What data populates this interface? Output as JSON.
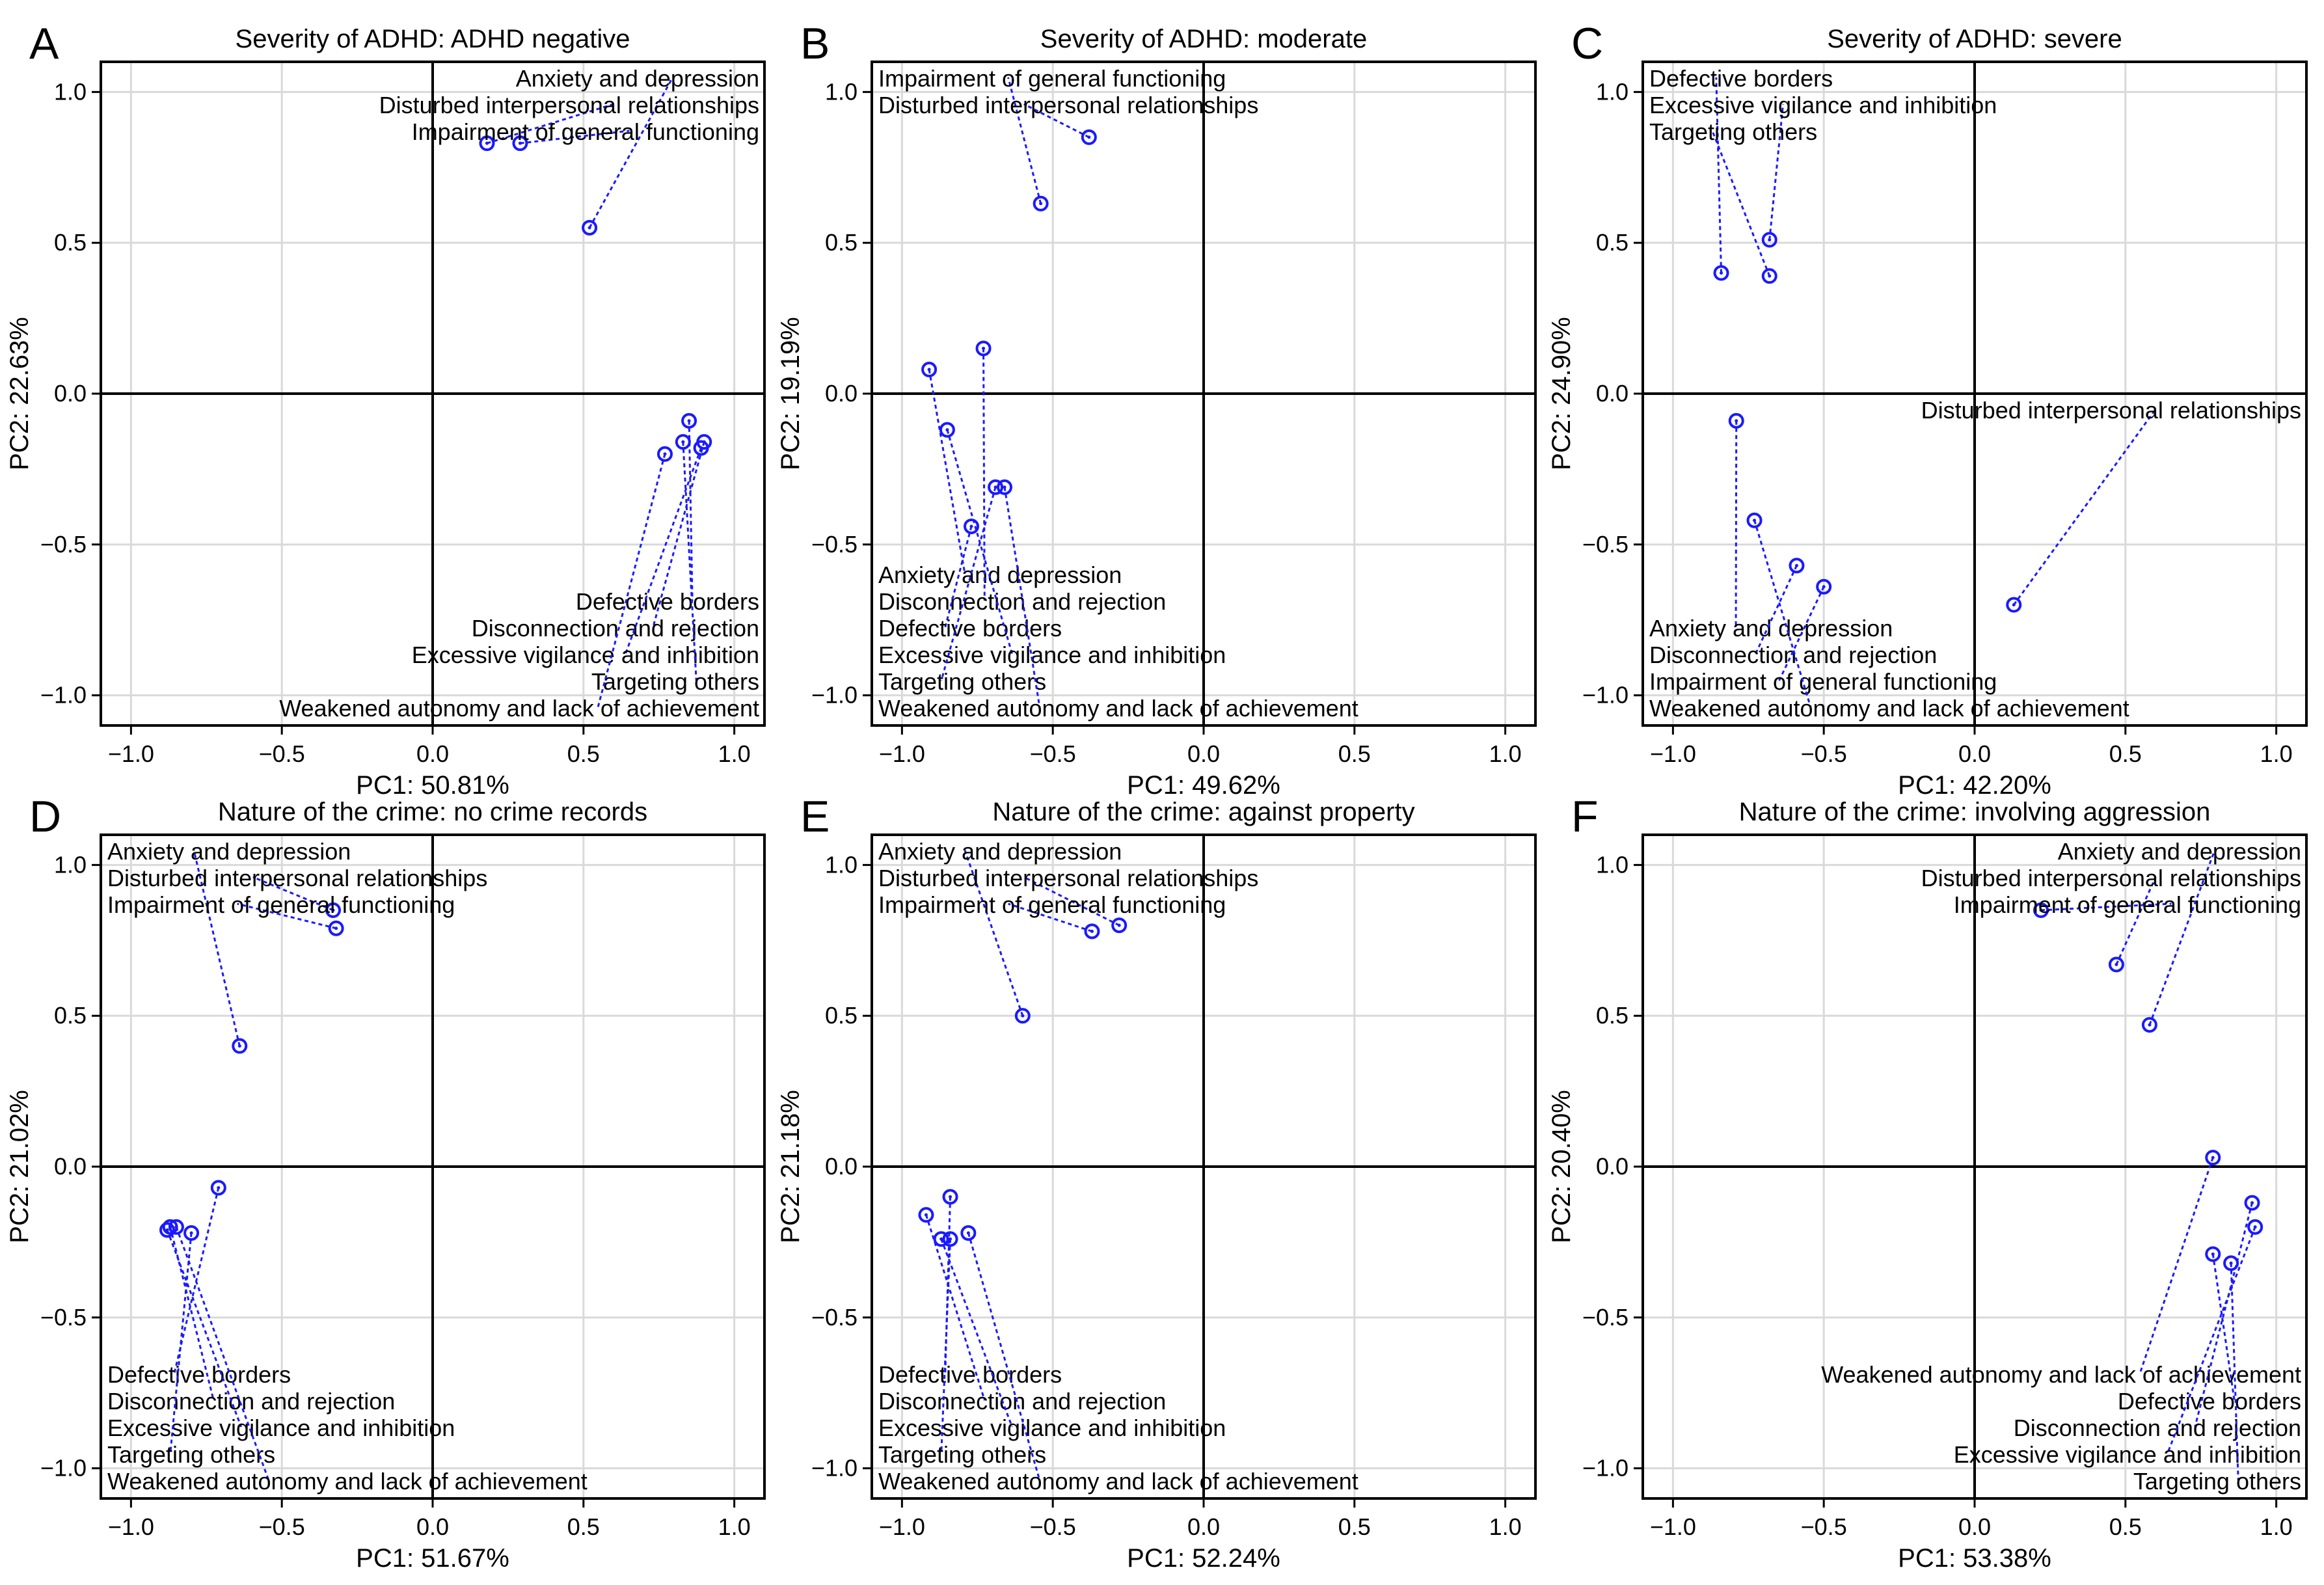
{
  "figure": {
    "colors": {
      "points": "#1a1aff",
      "axes": "#000000",
      "grid": "#d9d9d9",
      "background": "#ffffff"
    },
    "label_placement": "text labels connected to points by dotted leader lines"
  },
  "chart_data": [
    {
      "panel": "A",
      "type": "scatter",
      "title": "Severity of ADHD: ADHD negative",
      "xlabel": "PC1: 50.81%",
      "ylabel": "PC2: 22.63%",
      "xlim": [
        -1.1,
        1.1
      ],
      "ylim": [
        -1.1,
        1.1
      ],
      "xticks": [
        -1.0,
        -0.5,
        0.0,
        0.5,
        1.0
      ],
      "yticks": [
        -1.0,
        -0.5,
        0.0,
        0.5,
        1.0
      ],
      "grid": true,
      "label_block_top": "top-right",
      "label_block_bottom": "bottom-right",
      "points": [
        {
          "label": "Anxiety and depression",
          "x": 0.52,
          "y": 0.55
        },
        {
          "label": "Disturbed interpersonal relationships",
          "x": 0.18,
          "y": 0.83
        },
        {
          "label": "Impairment of general functioning",
          "x": 0.29,
          "y": 0.83
        },
        {
          "label": "Defective borders",
          "x": 0.85,
          "y": -0.09
        },
        {
          "label": "Disconnection and rejection",
          "x": 0.9,
          "y": -0.16
        },
        {
          "label": "Excessive vigilance and inhibition",
          "x": 0.89,
          "y": -0.18
        },
        {
          "label": "Targeting others",
          "x": 0.83,
          "y": -0.16
        },
        {
          "label": "Weakened autonomy and lack of achievement",
          "x": 0.77,
          "y": -0.2
        }
      ]
    },
    {
      "panel": "B",
      "type": "scatter",
      "title": "Severity of ADHD: moderate",
      "xlabel": "PC1: 49.62%",
      "ylabel": "PC2: 19.19%",
      "xlim": [
        -1.1,
        1.1
      ],
      "ylim": [
        -1.1,
        1.1
      ],
      "xticks": [
        -1.0,
        -0.5,
        0.0,
        0.5,
        1.0
      ],
      "yticks": [
        -1.0,
        -0.5,
        0.0,
        0.5,
        1.0
      ],
      "grid": true,
      "label_block_top": "top-left",
      "label_block_bottom": "bottom-left",
      "points": [
        {
          "label": "Anxiety and depression",
          "x": -0.91,
          "y": 0.08
        },
        {
          "label": "Disconnection and rejection",
          "x": -0.73,
          "y": 0.15
        },
        {
          "label": "Impairment of general functioning",
          "x": -0.54,
          "y": 0.63
        },
        {
          "label": "Disturbed interpersonal relationships",
          "x": -0.38,
          "y": 0.85
        },
        {
          "label": "Defective borders",
          "x": -0.77,
          "y": -0.44
        },
        {
          "label": "Excessive vigilance and inhibition",
          "x": -0.85,
          "y": -0.12
        },
        {
          "label": "Targeting others",
          "x": -0.69,
          "y": -0.31
        },
        {
          "label": "Weakened autonomy and lack of achievement",
          "x": -0.66,
          "y": -0.31
        }
      ]
    },
    {
      "panel": "C",
      "type": "scatter",
      "title": "Severity of ADHD: severe",
      "xlabel": "PC1: 42.20%",
      "ylabel": "PC2: 24.90%",
      "xlim": [
        -1.1,
        1.1
      ],
      "ylim": [
        -1.1,
        1.1
      ],
      "xticks": [
        -1.0,
        -0.5,
        0.0,
        0.5,
        1.0
      ],
      "yticks": [
        -1.0,
        -0.5,
        0.0,
        0.5,
        1.0
      ],
      "grid": true,
      "label_block_top": "top-left",
      "label_block_bottom": "bottom-left",
      "extra_label": "right-middle",
      "points": [
        {
          "label": "Defective borders",
          "x": -0.84,
          "y": 0.4
        },
        {
          "label": "Excessive vigilance and inhibition",
          "x": -0.68,
          "y": 0.51
        },
        {
          "label": "Targeting others",
          "x": -0.68,
          "y": 0.39
        },
        {
          "label": "Disturbed interpersonal relationships",
          "x": 0.13,
          "y": -0.7
        },
        {
          "label": "Anxiety and depression",
          "x": -0.79,
          "y": -0.09
        },
        {
          "label": "Disconnection and rejection",
          "x": -0.59,
          "y": -0.57
        },
        {
          "label": "Impairment of general functioning",
          "x": -0.5,
          "y": -0.64
        },
        {
          "label": "Weakened autonomy and lack of achievement",
          "x": -0.73,
          "y": -0.42
        }
      ]
    },
    {
      "panel": "D",
      "type": "scatter",
      "title": "Nature of the crime: no crime records",
      "xlabel": "PC1: 51.67%",
      "ylabel": "PC2: 21.02%",
      "xlim": [
        -1.1,
        1.1
      ],
      "ylim": [
        -1.1,
        1.1
      ],
      "xticks": [
        -1.0,
        -0.5,
        0.0,
        0.5,
        1.0
      ],
      "yticks": [
        -1.0,
        -0.5,
        0.0,
        0.5,
        1.0
      ],
      "grid": true,
      "label_block_top": "top-left",
      "label_block_bottom": "bottom-left",
      "points": [
        {
          "label": "Anxiety and depression",
          "x": -0.64,
          "y": 0.4
        },
        {
          "label": "Disturbed interpersonal relationships",
          "x": -0.33,
          "y": 0.85
        },
        {
          "label": "Impairment of general functioning",
          "x": -0.32,
          "y": 0.79
        },
        {
          "label": "Defective borders",
          "x": -0.71,
          "y": -0.07
        },
        {
          "label": "Disconnection and rejection",
          "x": -0.87,
          "y": -0.2
        },
        {
          "label": "Excessive vigilance and inhibition",
          "x": -0.88,
          "y": -0.21
        },
        {
          "label": "Targeting others",
          "x": -0.8,
          "y": -0.22
        },
        {
          "label": "Weakened autonomy and lack of achievement",
          "x": -0.85,
          "y": -0.2
        }
      ]
    },
    {
      "panel": "E",
      "type": "scatter",
      "title": "Nature of the crime: against property",
      "xlabel": "PC1: 52.24%",
      "ylabel": "PC2: 21.18%",
      "xlim": [
        -1.1,
        1.1
      ],
      "ylim": [
        -1.1,
        1.1
      ],
      "xticks": [
        -1.0,
        -0.5,
        0.0,
        0.5,
        1.0
      ],
      "yticks": [
        -1.0,
        -0.5,
        0.0,
        0.5,
        1.0
      ],
      "grid": true,
      "label_block_top": "top-left",
      "label_block_bottom": "bottom-left",
      "points": [
        {
          "label": "Anxiety and depression",
          "x": -0.6,
          "y": 0.5
        },
        {
          "label": "Disturbed interpersonal relationships",
          "x": -0.28,
          "y": 0.8
        },
        {
          "label": "Impairment of general functioning",
          "x": -0.37,
          "y": 0.78
        },
        {
          "label": "Defective borders",
          "x": -0.84,
          "y": -0.1
        },
        {
          "label": "Disconnection and rejection",
          "x": -0.92,
          "y": -0.16
        },
        {
          "label": "Excessive vigilance and inhibition",
          "x": -0.87,
          "y": -0.24
        },
        {
          "label": "Targeting others",
          "x": -0.84,
          "y": -0.24
        },
        {
          "label": "Weakened autonomy and lack of achievement",
          "x": -0.78,
          "y": -0.22
        }
      ]
    },
    {
      "panel": "F",
      "type": "scatter",
      "title": "Nature of the crime: involving aggression",
      "xlabel": "PC1: 53.38%",
      "ylabel": "PC2: 20.40%",
      "xlim": [
        -1.1,
        1.1
      ],
      "ylim": [
        -1.1,
        1.1
      ],
      "xticks": [
        -1.0,
        -0.5,
        0.0,
        0.5,
        1.0
      ],
      "yticks": [
        -1.0,
        -0.5,
        0.0,
        0.5,
        1.0
      ],
      "grid": true,
      "label_block_top": "top-right",
      "label_block_bottom": "bottom-right",
      "points": [
        {
          "label": "Anxiety and depression",
          "x": 0.58,
          "y": 0.47
        },
        {
          "label": "Disturbed interpersonal relationships",
          "x": 0.47,
          "y": 0.67
        },
        {
          "label": "Impairment of general functioning",
          "x": 0.22,
          "y": 0.85
        },
        {
          "label": "Weakened autonomy and lack of achievement",
          "x": 0.79,
          "y": 0.03
        },
        {
          "label": "Defective borders",
          "x": 0.79,
          "y": -0.29
        },
        {
          "label": "Disconnection and rejection",
          "x": 0.92,
          "y": -0.12
        },
        {
          "label": "Excessive vigilance and inhibition",
          "x": 0.93,
          "y": -0.2
        },
        {
          "label": "Targeting others",
          "x": 0.85,
          "y": -0.32
        }
      ]
    }
  ]
}
